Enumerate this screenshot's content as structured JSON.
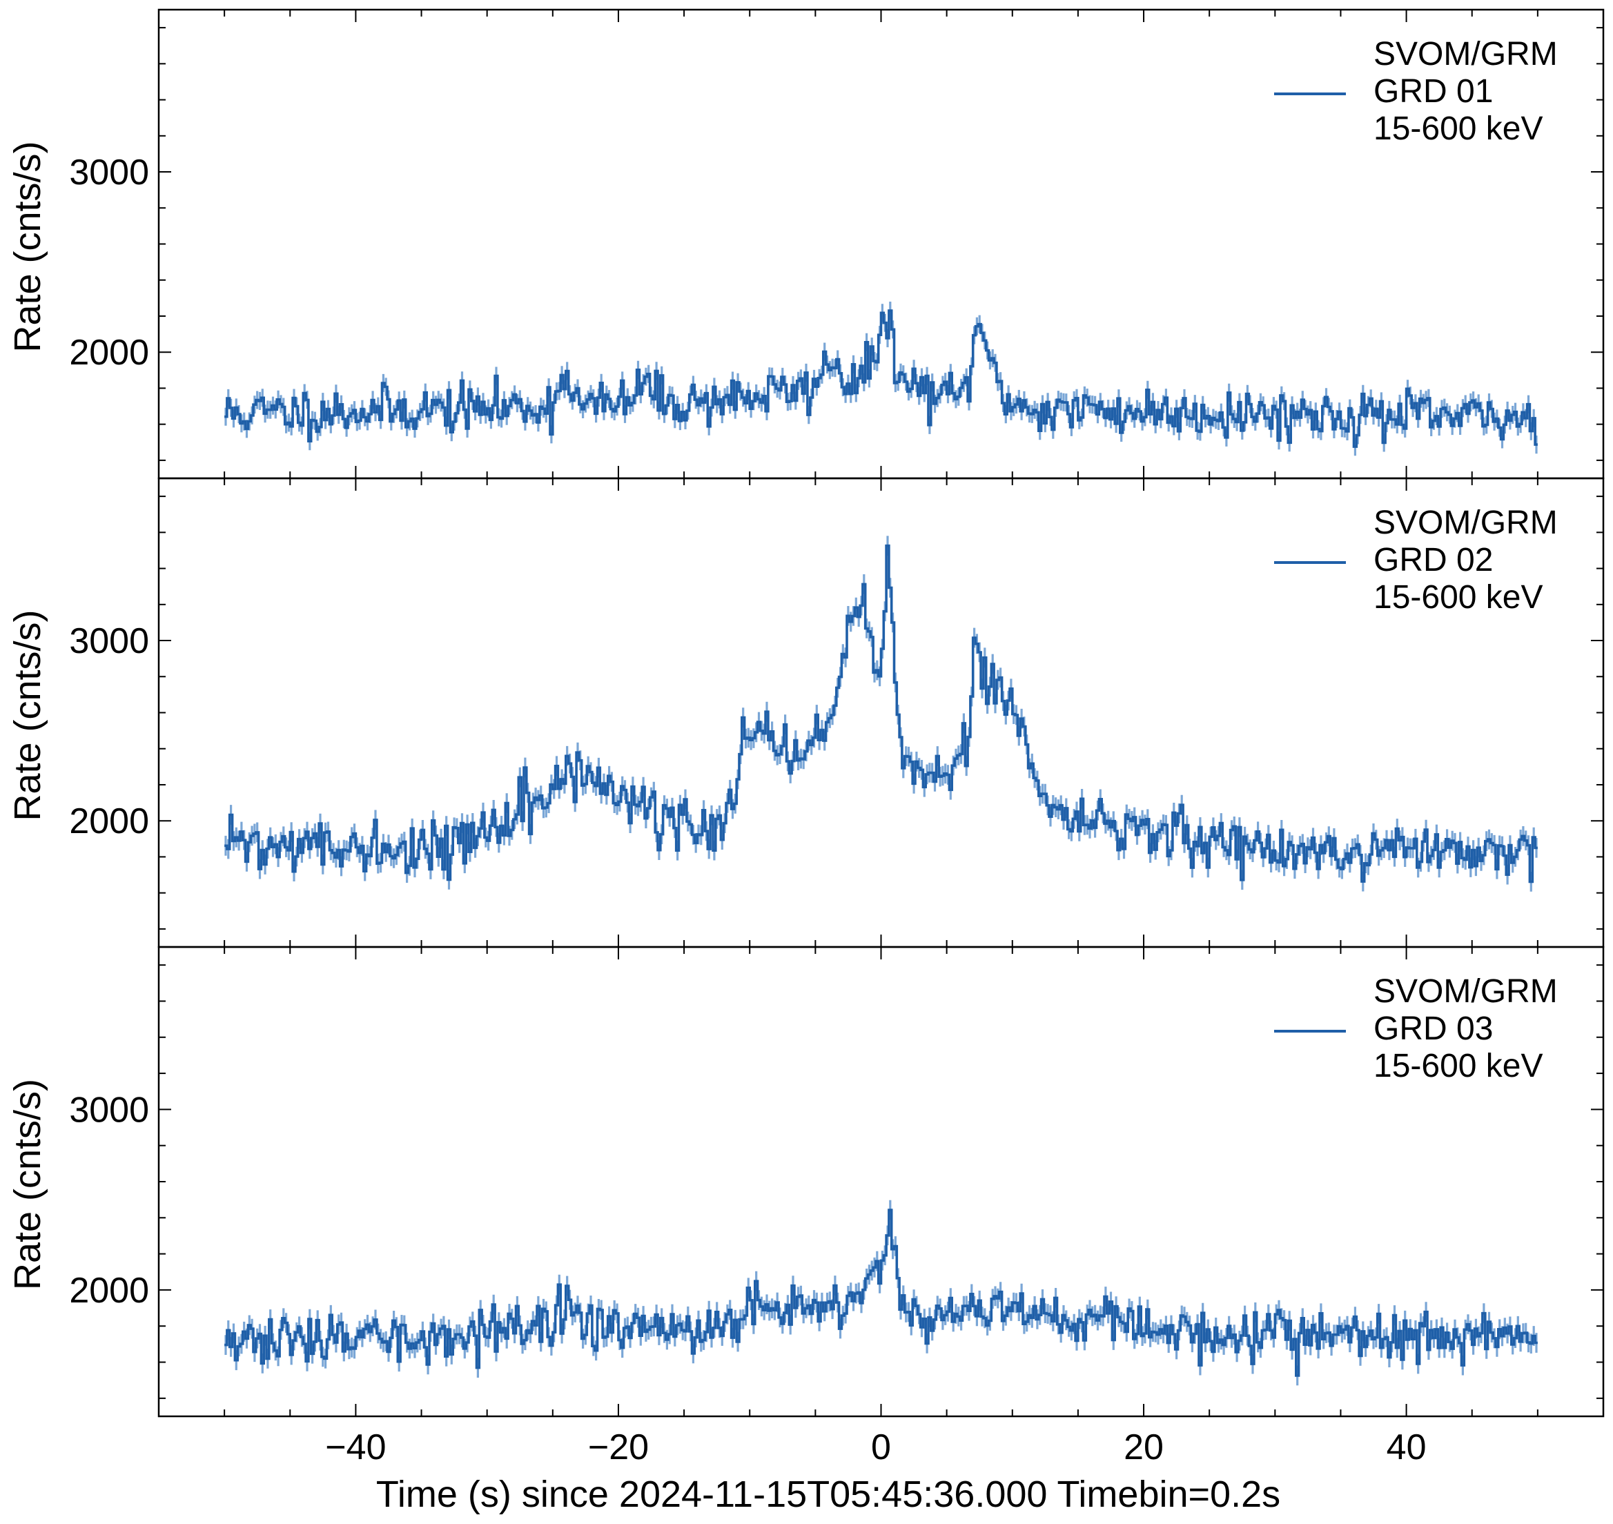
{
  "chart_data": {
    "type": "line",
    "xlabel": "Time (s) since 2024-11-15T05:45:36.000 Timebin=0.2s",
    "ylabel": "Rate (cnts/s)",
    "xlim": [
      -55,
      55
    ],
    "ylim": [
      1300,
      3900
    ],
    "x_ticks": [
      -40,
      -20,
      0,
      20,
      40
    ],
    "x_tick_labels": [
      "−40",
      "−20",
      "0",
      "20",
      "40"
    ],
    "y_ticks": [
      2000,
      3000
    ],
    "y_tick_labels": [
      "2000",
      "3000"
    ],
    "x_range": [
      -50,
      50
    ],
    "timebin": 0.2,
    "line_color": "#1f5fa8",
    "errorbar_color": "#7aa6d6",
    "grid": false,
    "legend_position": "top-right",
    "panels": [
      {
        "legend": [
          "SVOM/GRM",
          "GRD 01",
          "15-600 keV"
        ],
        "baseline": [
          [
            -50,
            1660
          ],
          [
            -30,
            1690
          ],
          [
            -15,
            1720
          ],
          [
            -8,
            1770
          ],
          [
            -3,
            1820
          ],
          [
            0,
            1860
          ],
          [
            5,
            1750
          ],
          [
            12,
            1680
          ],
          [
            30,
            1660
          ],
          [
            50,
            1630
          ]
        ],
        "peaks": [
          [
            0.6,
            320,
            0.3
          ],
          [
            -0.2,
            150,
            0.6
          ],
          [
            -3.8,
            150,
            0.6
          ],
          [
            7.5,
            350,
            0.5
          ],
          [
            8.3,
            120,
            1.0
          ],
          [
            -24,
            200,
            0.4
          ],
          [
            -18,
            120,
            0.6
          ]
        ],
        "noise_amplitude": 65,
        "error_bar": 50,
        "seed": 11
      },
      {
        "legend": [
          "SVOM/GRM",
          "GRD 02",
          "15-600 keV"
        ],
        "baseline": [
          [
            -50,
            1880
          ],
          [
            -40,
            1820
          ],
          [
            -33,
            1860
          ],
          [
            -29,
            2000
          ],
          [
            -27,
            2150
          ],
          [
            -25,
            2050
          ],
          [
            -24,
            2320
          ],
          [
            -20,
            2150
          ],
          [
            -16,
            2000
          ],
          [
            -13,
            1880
          ],
          [
            -11,
            2100
          ],
          [
            -10,
            2500
          ],
          [
            -7,
            2350
          ],
          [
            -4,
            2550
          ],
          [
            -2.5,
            2900
          ],
          [
            -1,
            2950
          ],
          [
            0,
            2750
          ],
          [
            1,
            2550
          ],
          [
            2.2,
            2300
          ],
          [
            5,
            2250
          ],
          [
            6.5,
            2400
          ],
          [
            7.3,
            2850
          ],
          [
            8.5,
            2700
          ],
          [
            10,
            2500
          ],
          [
            12,
            2150
          ],
          [
            14,
            2050
          ],
          [
            18,
            1950
          ],
          [
            24,
            1900
          ],
          [
            30,
            1850
          ],
          [
            40,
            1820
          ],
          [
            50,
            1800
          ]
        ],
        "peaks": [
          [
            0.6,
            800,
            0.3
          ],
          [
            -1.5,
            250,
            0.4
          ],
          [
            -2.6,
            250,
            0.4
          ],
          [
            7.4,
            150,
            0.4
          ],
          [
            9.2,
            150,
            0.5
          ],
          [
            10.7,
            150,
            0.5
          ],
          [
            -10.5,
            100,
            0.5
          ],
          [
            -8.8,
            150,
            0.5
          ]
        ],
        "noise_amplitude": 70,
        "error_bar": 55,
        "seed": 22
      },
      {
        "legend": [
          "SVOM/GRM",
          "GRD 03",
          "15-600 keV"
        ],
        "baseline": [
          [
            -50,
            1710
          ],
          [
            -35,
            1730
          ],
          [
            -25,
            1800
          ],
          [
            -15,
            1800
          ],
          [
            -8,
            1840
          ],
          [
            -3,
            1920
          ],
          [
            0,
            2050
          ],
          [
            3,
            1850
          ],
          [
            8,
            1930
          ],
          [
            12,
            1880
          ],
          [
            20,
            1800
          ],
          [
            30,
            1760
          ],
          [
            50,
            1740
          ]
        ],
        "peaks": [
          [
            0.6,
            350,
            0.3
          ],
          [
            -0.4,
            100,
            0.5
          ],
          [
            -6.5,
            100,
            0.4
          ],
          [
            -9.5,
            120,
            0.5
          ],
          [
            -24,
            100,
            0.5
          ]
        ],
        "noise_amplitude": 65,
        "error_bar": 55,
        "seed": 33
      }
    ]
  }
}
